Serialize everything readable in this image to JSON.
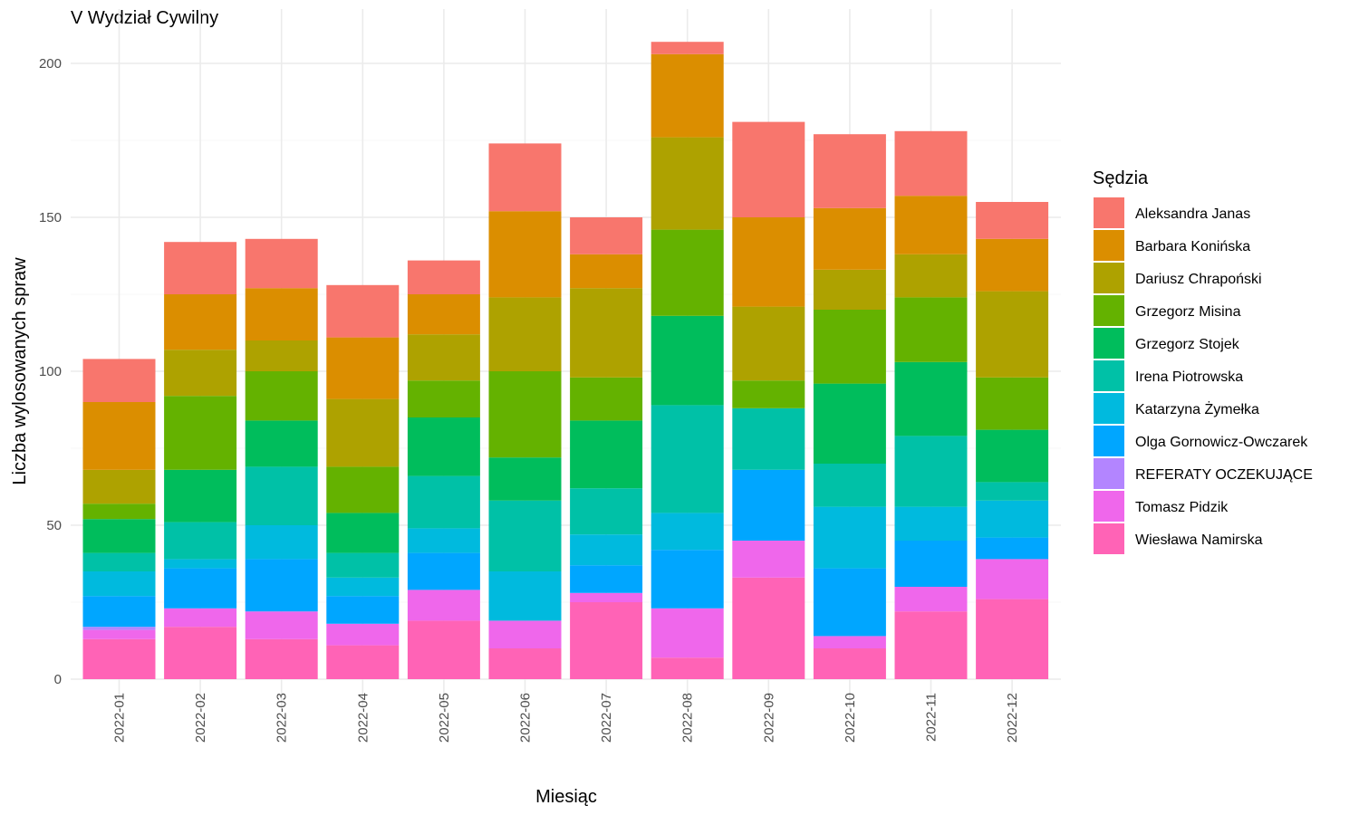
{
  "chart_data": {
    "type": "bar",
    "stacked": true,
    "title": "V Wydział Cywilny",
    "xlabel": "Miesiąc",
    "ylabel": "Liczba wylosowanych spraw",
    "ylim": [
      0,
      210
    ],
    "yticks": [
      0,
      50,
      100,
      150,
      200
    ],
    "grid": true,
    "legend_title": "Sędzia",
    "legend_position": "right",
    "categories": [
      "2022-01",
      "2022-02",
      "2022-03",
      "2022-04",
      "2022-05",
      "2022-06",
      "2022-07",
      "2022-08",
      "2022-09",
      "2022-10",
      "2022-11",
      "2022-12"
    ],
    "series": [
      {
        "name": "Aleksandra Janas",
        "color": "#F8766D",
        "values": [
          14,
          17,
          16,
          17,
          11,
          22,
          12,
          4,
          31,
          24,
          21,
          12
        ]
      },
      {
        "name": "Barbara Konińska",
        "color": "#DB8E00",
        "values": [
          22,
          18,
          17,
          20,
          13,
          28,
          11,
          27,
          29,
          20,
          19,
          17
        ]
      },
      {
        "name": "Dariusz Chrapoński",
        "color": "#AEA200",
        "values": [
          11,
          15,
          10,
          22,
          15,
          24,
          29,
          30,
          24,
          13,
          14,
          28
        ]
      },
      {
        "name": "Grzegorz Misina",
        "color": "#64B200",
        "values": [
          5,
          24,
          16,
          15,
          12,
          28,
          14,
          28,
          9,
          24,
          21,
          17
        ]
      },
      {
        "name": "Grzegorz Stojek",
        "color": "#00BD5C",
        "values": [
          11,
          17,
          15,
          13,
          19,
          14,
          22,
          29,
          0,
          26,
          24,
          17
        ]
      },
      {
        "name": "Irena Piotrowska",
        "color": "#00C1A7",
        "values": [
          6,
          12,
          19,
          8,
          17,
          23,
          15,
          35,
          20,
          14,
          23,
          6
        ]
      },
      {
        "name": "Katarzyna Żymełka",
        "color": "#00BADE",
        "values": [
          8,
          3,
          11,
          6,
          8,
          16,
          10,
          12,
          0,
          20,
          11,
          12
        ]
      },
      {
        "name": "Olga Gornowicz-Owczarek",
        "color": "#00A6FF",
        "values": [
          10,
          13,
          17,
          9,
          12,
          0,
          9,
          19,
          23,
          22,
          15,
          7
        ]
      },
      {
        "name": "REFERATY OCZEKUJĄCE",
        "color": "#B385FF",
        "values": [
          1,
          0,
          0,
          0,
          0,
          0,
          0,
          0,
          0,
          0,
          0,
          0
        ]
      },
      {
        "name": "Tomasz Pidzik",
        "color": "#EF67EB",
        "values": [
          3,
          6,
          9,
          7,
          10,
          9,
          3,
          16,
          12,
          4,
          8,
          13
        ]
      },
      {
        "name": "Wiesława Namirska",
        "color": "#FF63B6",
        "values": [
          13,
          17,
          13,
          11,
          19,
          10,
          25,
          7,
          33,
          10,
          22,
          26
        ]
      }
    ]
  }
}
